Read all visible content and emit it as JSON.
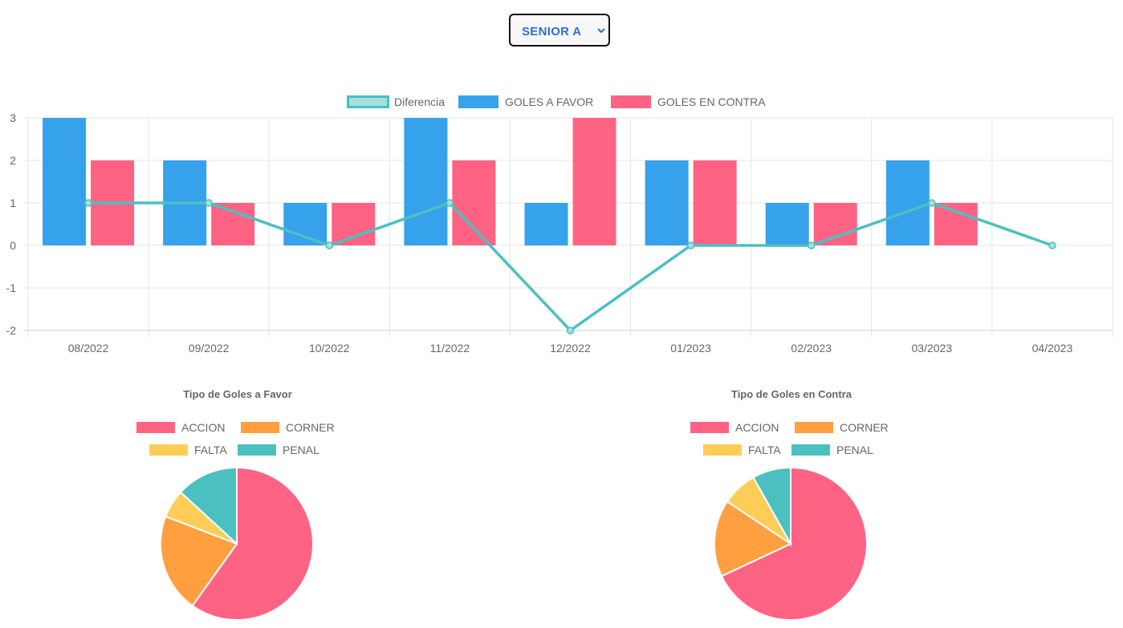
{
  "team_select": {
    "value": "SENIOR A",
    "icon": "chevron-down-icon"
  },
  "colors": {
    "diferencia": "#4bc0c0",
    "goles_favor": "#36a2eb",
    "goles_contra": "#ff6384",
    "corner": "#ff9f40",
    "falta": "#ffcd56",
    "penal": "#4bc0c0",
    "accion": "#ff6384"
  },
  "chart_data": [
    {
      "type": "bar",
      "title": "",
      "legend_position": "top",
      "grid": true,
      "categories": [
        "08/2022",
        "09/2022",
        "10/2022",
        "11/2022",
        "12/2022",
        "01/2023",
        "02/2023",
        "03/2023",
        "04/2023"
      ],
      "ylim": [
        -2,
        3
      ],
      "yticks": [
        "3",
        "2",
        "1",
        "0",
        "-1",
        "-2"
      ],
      "series": [
        {
          "name": "Diferencia",
          "type": "line",
          "values": [
            1,
            1,
            0,
            1,
            -2,
            0,
            0,
            1,
            0
          ]
        },
        {
          "name": "GOLES A FAVOR",
          "type": "bar",
          "values": [
            3,
            2,
            1,
            3,
            1,
            2,
            1,
            2,
            0
          ]
        },
        {
          "name": "GOLES EN CONTRA",
          "type": "bar",
          "values": [
            2,
            1,
            1,
            2,
            3,
            2,
            1,
            1,
            0
          ]
        }
      ]
    },
    {
      "type": "pie",
      "title": "Tipo de Goles a Favor",
      "legend_position": "top",
      "labels": [
        "ACCION",
        "CORNER",
        "FALTA",
        "PENAL"
      ],
      "values": [
        10,
        3.5,
        1,
        2.2
      ]
    },
    {
      "type": "pie",
      "title": "Tipo de Goles en Contra",
      "legend_position": "top",
      "labels": [
        "ACCION",
        "CORNER",
        "FALTA",
        "PENAL"
      ],
      "values": [
        10,
        2.4,
        1.1,
        1.2
      ]
    }
  ]
}
